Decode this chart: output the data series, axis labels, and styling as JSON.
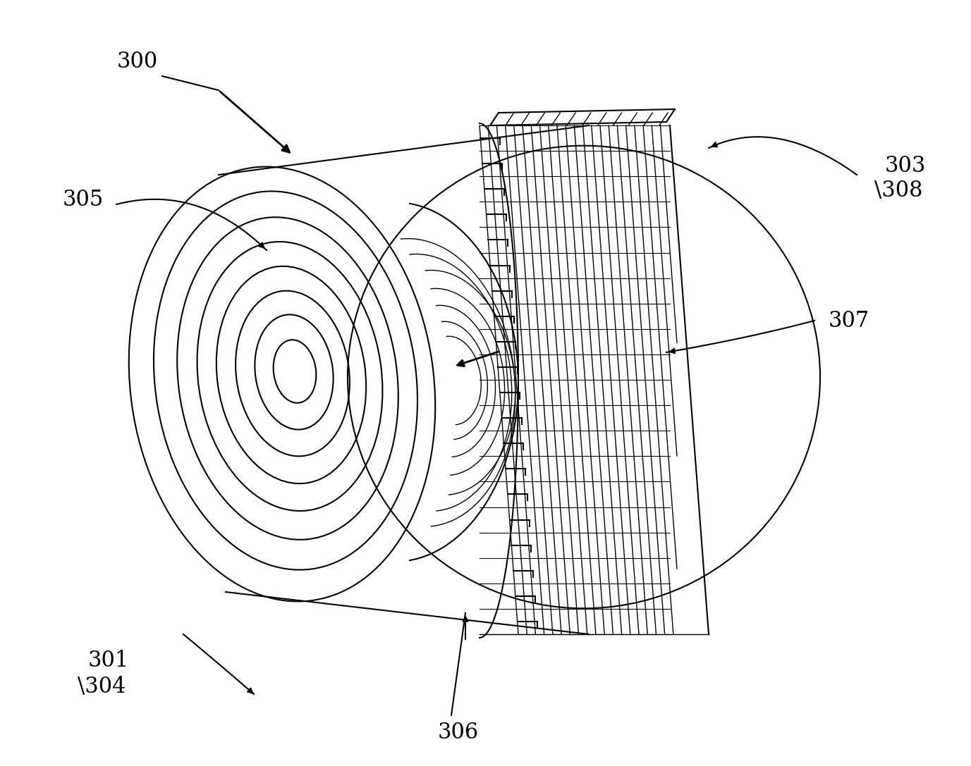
{
  "bg_color": "#ffffff",
  "line_color": "#000000",
  "fig_width": 13.77,
  "fig_height": 10.87,
  "dpi": 100
}
